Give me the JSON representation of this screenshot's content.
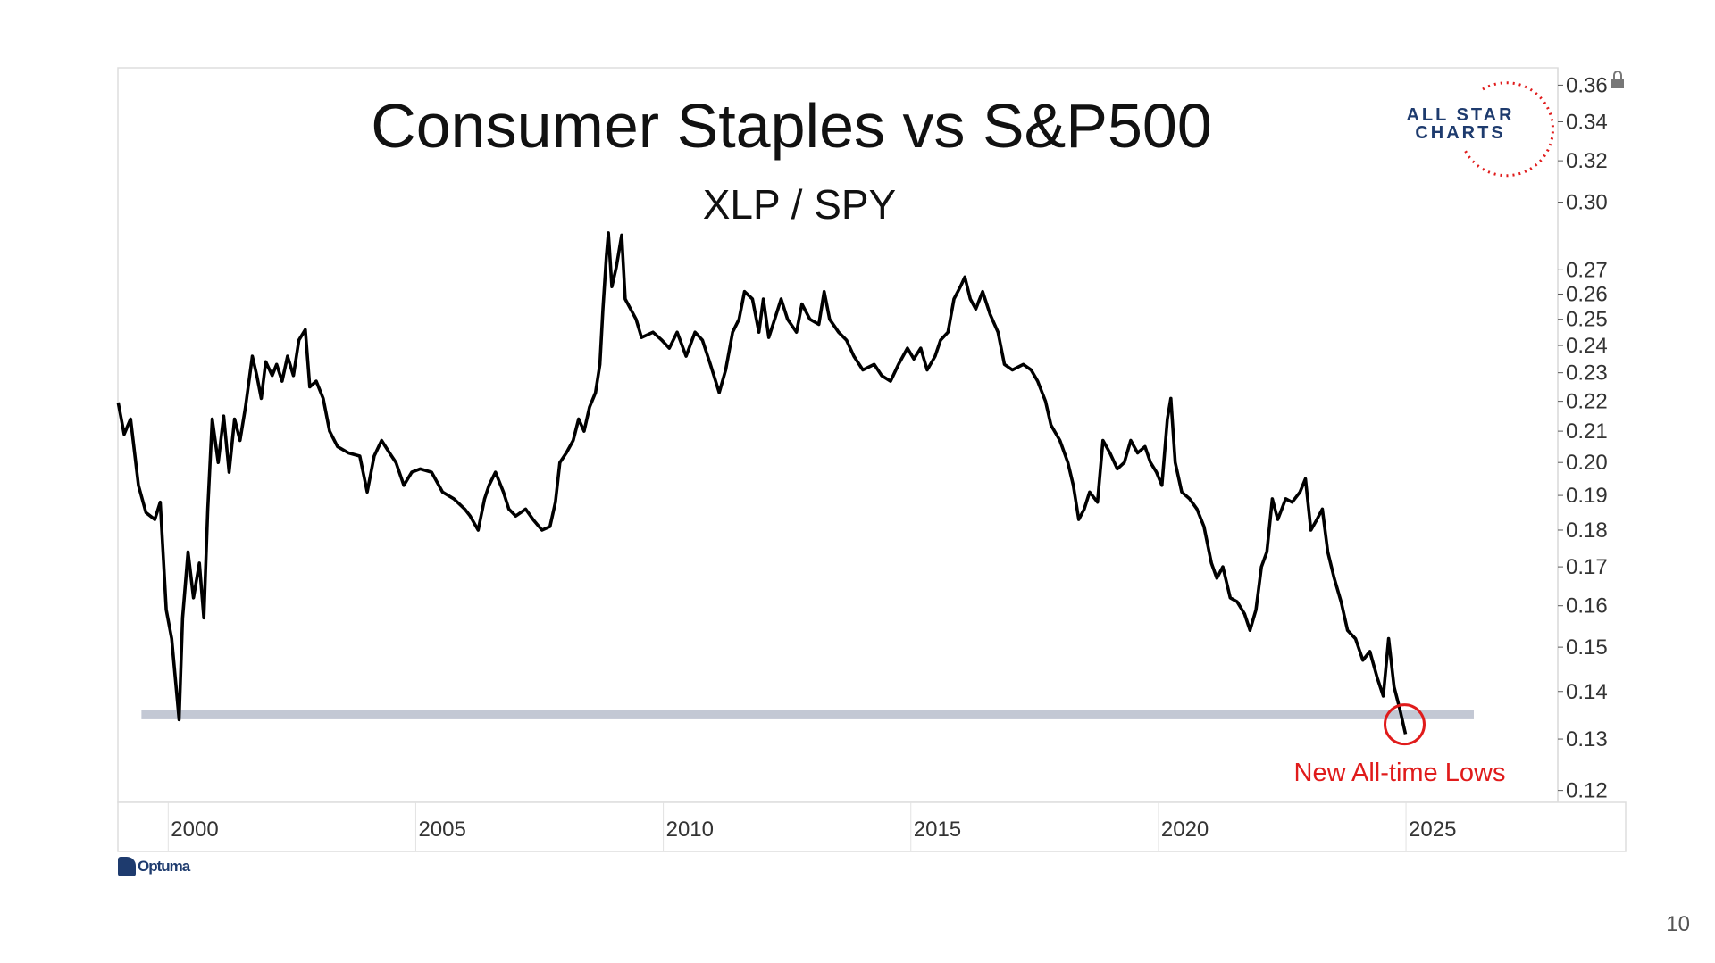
{
  "chart_data": {
    "type": "line",
    "title": "Consumer Staples vs S&P500",
    "subtitle": "XLP / SPY",
    "xlabel": "",
    "ylabel": "",
    "yscale": "log",
    "ylim": [
      0.12,
      0.36
    ],
    "xlim": [
      1998.6,
      2027.4
    ],
    "grid": false,
    "x_ticks": [
      "2000",
      "2005",
      "2010",
      "2015",
      "2020",
      "2025"
    ],
    "x_tick_values": [
      2000,
      2005,
      2010,
      2015,
      2020,
      2025
    ],
    "y_ticks": [
      "0.36",
      "0.34",
      "0.32",
      "0.30",
      "0.27",
      "0.26",
      "0.25",
      "0.24",
      "0.23",
      "0.22",
      "0.21",
      "0.20",
      "0.19",
      "0.18",
      "0.17",
      "0.16",
      "0.15",
      "0.14",
      "0.13",
      "0.12"
    ],
    "y_tick_values": [
      0.36,
      0.34,
      0.32,
      0.3,
      0.27,
      0.26,
      0.25,
      0.24,
      0.23,
      0.22,
      0.21,
      0.2,
      0.19,
      0.18,
      0.17,
      0.16,
      0.15,
      0.14,
      0.13,
      0.12
    ],
    "series": [
      {
        "name": "XLP / SPY",
        "color": "#000000",
        "x": [
          1998.99,
          1999.11,
          1999.24,
          1999.4,
          1999.55,
          1999.73,
          1999.84,
          1999.96,
          2000.07,
          2000.22,
          2000.29,
          2000.4,
          2000.51,
          2000.63,
          2000.72,
          2000.8,
          2000.89,
          2001.01,
          2001.12,
          2001.23,
          2001.34,
          2001.45,
          2001.56,
          2001.7,
          2001.79,
          2001.88,
          2001.97,
          2002.1,
          2002.19,
          2002.3,
          2002.41,
          2002.53,
          2002.64,
          2002.77,
          2002.86,
          2002.99,
          2003.13,
          2003.26,
          2003.42,
          2003.64,
          2003.87,
          2004.02,
          2004.16,
          2004.31,
          2004.47,
          2004.6,
          2004.76,
          2004.92,
          2005.09,
          2005.32,
          2005.54,
          2005.77,
          2005.99,
          2006.1,
          2006.26,
          2006.39,
          2006.48,
          2006.61,
          2006.77,
          2006.88,
          2007.02,
          2007.22,
          2007.37,
          2007.55,
          2007.71,
          2007.82,
          2007.91,
          2008.04,
          2008.18,
          2008.29,
          2008.4,
          2008.51,
          2008.63,
          2008.72,
          2008.78,
          2008.85,
          2008.89,
          2008.96,
          2009.05,
          2009.16,
          2009.23,
          2009.34,
          2009.45,
          2009.56,
          2009.79,
          2009.97,
          2010.12,
          2010.28,
          2010.46,
          2010.64,
          2010.79,
          2010.95,
          2011.13,
          2011.26,
          2011.4,
          2011.53,
          2011.64,
          2011.8,
          2011.93,
          2012.02,
          2012.13,
          2012.25,
          2012.38,
          2012.51,
          2012.69,
          2012.8,
          2012.96,
          2013.14,
          2013.25,
          2013.36,
          2013.54,
          2013.7,
          2013.85,
          2014.03,
          2014.26,
          2014.41,
          2014.59,
          2014.75,
          2014.93,
          2015.06,
          2015.2,
          2015.33,
          2015.49,
          2015.6,
          2015.75,
          2015.87,
          2016.0,
          2016.09,
          2016.2,
          2016.31,
          2016.45,
          2016.6,
          2016.76,
          2016.89,
          2017.05,
          2017.27,
          2017.43,
          2017.56,
          2017.72,
          2017.83,
          2018.01,
          2018.17,
          2018.28,
          2018.39,
          2018.5,
          2018.61,
          2018.77,
          2018.88,
          2019.02,
          2019.17,
          2019.31,
          2019.44,
          2019.58,
          2019.73,
          2019.84,
          2019.96,
          2020.07,
          2020.18,
          2020.25,
          2020.34,
          2020.47,
          2020.63,
          2020.78,
          2020.92,
          2021.07,
          2021.18,
          2021.3,
          2021.45,
          2021.59,
          2021.74,
          2021.85,
          2021.97,
          2022.08,
          2022.19,
          2022.3,
          2022.41,
          2022.57,
          2022.7,
          2022.86,
          2022.97,
          2023.08,
          2023.2,
          2023.31,
          2023.42,
          2023.55,
          2023.69,
          2023.82,
          2023.98,
          2024.13,
          2024.27,
          2024.42,
          2024.54,
          2024.65,
          2024.76,
          2024.88,
          2024.99
        ],
        "values": [
          0.2196,
          0.209,
          0.214,
          0.193,
          0.185,
          0.183,
          0.188,
          0.159,
          0.152,
          0.134,
          0.157,
          0.174,
          0.162,
          0.171,
          0.157,
          0.186,
          0.214,
          0.2,
          0.215,
          0.197,
          0.214,
          0.207,
          0.218,
          0.236,
          0.229,
          0.221,
          0.234,
          0.229,
          0.233,
          0.227,
          0.236,
          0.229,
          0.242,
          0.246,
          0.225,
          0.227,
          0.221,
          0.21,
          0.205,
          0.203,
          0.202,
          0.191,
          0.202,
          0.207,
          0.203,
          0.2,
          0.193,
          0.197,
          0.198,
          0.197,
          0.191,
          0.189,
          0.186,
          0.184,
          0.18,
          0.189,
          0.193,
          0.197,
          0.191,
          0.186,
          0.184,
          0.186,
          0.183,
          0.18,
          0.181,
          0.188,
          0.2,
          0.203,
          0.207,
          0.214,
          0.21,
          0.218,
          0.223,
          0.233,
          0.254,
          0.276,
          0.286,
          0.263,
          0.271,
          0.285,
          0.258,
          0.254,
          0.25,
          0.243,
          0.245,
          0.242,
          0.239,
          0.245,
          0.236,
          0.245,
          0.242,
          0.233,
          0.223,
          0.231,
          0.245,
          0.25,
          0.261,
          0.258,
          0.245,
          0.258,
          0.243,
          0.25,
          0.258,
          0.25,
          0.245,
          0.256,
          0.25,
          0.248,
          0.261,
          0.25,
          0.245,
          0.242,
          0.236,
          0.231,
          0.233,
          0.229,
          0.227,
          0.233,
          0.239,
          0.235,
          0.239,
          0.231,
          0.236,
          0.242,
          0.245,
          0.258,
          0.263,
          0.267,
          0.258,
          0.254,
          0.261,
          0.252,
          0.245,
          0.233,
          0.231,
          0.233,
          0.231,
          0.227,
          0.22,
          0.212,
          0.207,
          0.2,
          0.193,
          0.183,
          0.186,
          0.191,
          0.188,
          0.207,
          0.203,
          0.198,
          0.2,
          0.207,
          0.203,
          0.205,
          0.2,
          0.197,
          0.193,
          0.214,
          0.221,
          0.2,
          0.191,
          0.189,
          0.186,
          0.181,
          0.171,
          0.167,
          0.17,
          0.162,
          0.161,
          0.158,
          0.154,
          0.159,
          0.17,
          0.174,
          0.189,
          0.183,
          0.189,
          0.188,
          0.191,
          0.195,
          0.18,
          0.183,
          0.186,
          0.174,
          0.167,
          0.161,
          0.154,
          0.152,
          0.147,
          0.149,
          0.143,
          0.139,
          0.152,
          0.141,
          0.136,
          0.131
        ]
      }
    ],
    "support_line": {
      "value": 0.135,
      "x_start": 1999.46,
      "x_end": 2026.37,
      "color": "#c3c8d4"
    },
    "highlight_circle": {
      "x": 2024.99,
      "value": 0.133,
      "color": "#e01b1b"
    },
    "annotations": [
      {
        "text": "New All-time Lows",
        "color": "#e01b1b"
      }
    ]
  },
  "logo": {
    "line1": "ALL STAR",
    "line2": "CHARTS"
  },
  "footer": {
    "brand": "Optuma",
    "page_number": "10"
  }
}
